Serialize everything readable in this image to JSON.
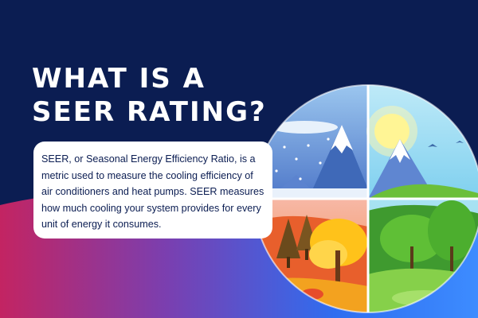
{
  "headline": {
    "line1": "WHAT IS A",
    "line2": "SEER RATING?"
  },
  "description": "SEER, or Seasonal Energy Efficiency Ratio, is a metric used to measure the cooling efficiency of air conditioners and heat pumps. SEER measures how much cooling your system provides for every unit of energy it consumes.",
  "colors": {
    "background_navy": "#0b1d52",
    "wave_blue": "#2f6df0",
    "wave_magenta": "#c7245f",
    "card": "#ffffff",
    "text_dark": "#0b1d52"
  },
  "illustration": {
    "icon": "four-seasons-globe-icon",
    "quadrants": [
      "winter",
      "spring",
      "autumn",
      "summer"
    ]
  }
}
